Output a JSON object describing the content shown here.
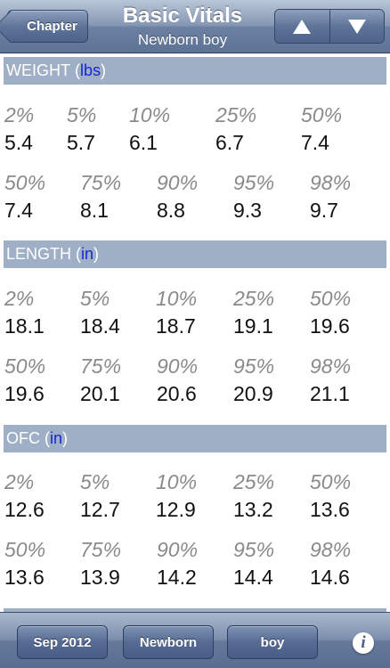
{
  "navbar": {
    "back_label": "Chapter",
    "title": "Basic Vitals",
    "subtitle": "Newborn boy",
    "up_icon": "triangle-up",
    "down_icon": "triangle-down"
  },
  "sections": [
    {
      "name": "WEIGHT",
      "unit": "lbs",
      "rows": [
        {
          "percentiles": [
            "2%",
            "5%",
            "10%",
            "25%",
            "50%"
          ],
          "values": [
            "5.4",
            "5.7",
            "6.1",
            "6.7",
            "7.4"
          ]
        },
        {
          "percentiles": [
            "50%",
            "75%",
            "90%",
            "95%",
            "98%"
          ],
          "values": [
            "7.4",
            "8.1",
            "8.8",
            "9.3",
            "9.7"
          ]
        }
      ]
    },
    {
      "name": "LENGTH",
      "unit": "in",
      "rows": [
        {
          "percentiles": [
            "2%",
            "5%",
            "10%",
            "25%",
            "50%"
          ],
          "values": [
            "18.1",
            "18.4",
            "18.7",
            "19.1",
            "19.6"
          ]
        },
        {
          "percentiles": [
            "50%",
            "75%",
            "90%",
            "95%",
            "98%"
          ],
          "values": [
            "19.6",
            "20.1",
            "20.6",
            "20.9",
            "21.1"
          ]
        }
      ]
    },
    {
      "name": "OFC",
      "unit": "in",
      "rows": [
        {
          "percentiles": [
            "2%",
            "5%",
            "10%",
            "25%",
            "50%"
          ],
          "values": [
            "12.6",
            "12.7",
            "12.9",
            "13.2",
            "13.6"
          ]
        },
        {
          "percentiles": [
            "50%",
            "75%",
            "90%",
            "95%",
            "98%"
          ],
          "values": [
            "13.6",
            "13.9",
            "14.2",
            "14.4",
            "14.6"
          ]
        }
      ]
    }
  ],
  "toolbar": {
    "date_label": "Sep 2012",
    "age_label": "Newborn",
    "sex_label": "boy",
    "info_icon": "info-icon"
  },
  "colors": {
    "header_band": "#9fb0c6",
    "unit_text": "#1426d6",
    "percentile_text": "#8a8a8a"
  }
}
